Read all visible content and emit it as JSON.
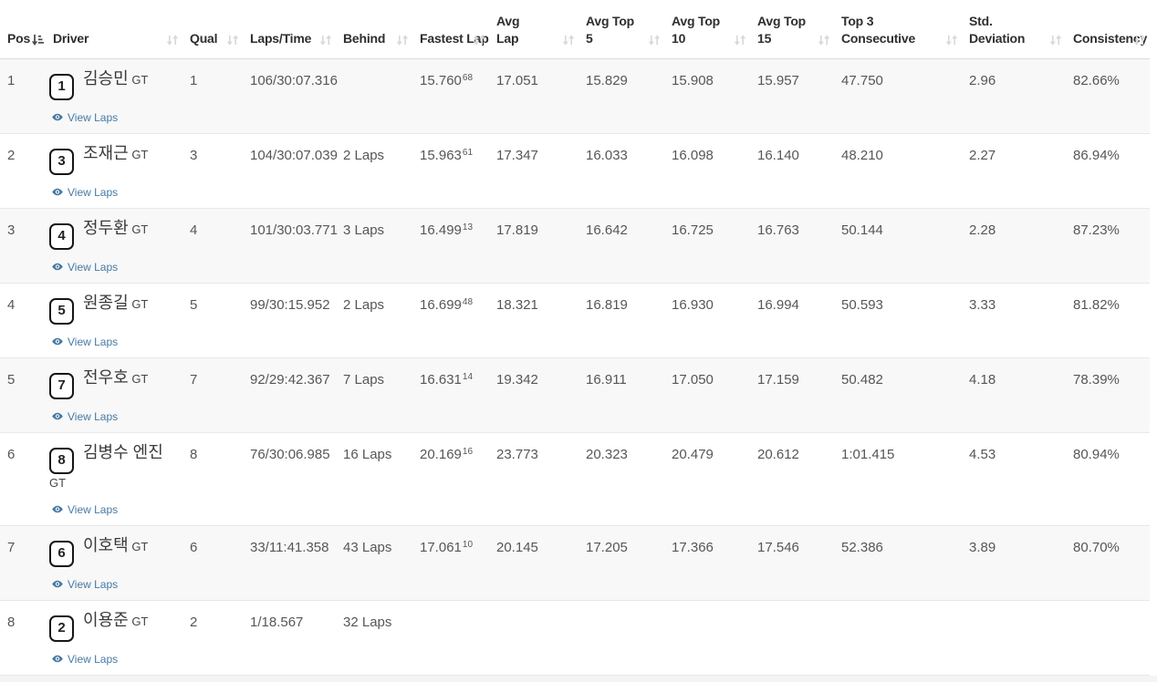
{
  "table": {
    "view_laps_label": "View Laps",
    "columns": [
      {
        "key": "pos",
        "label": "Pos",
        "lines": [
          "Pos"
        ],
        "sort": "active"
      },
      {
        "key": "driver",
        "label": "Driver",
        "lines": [
          "Driver"
        ],
        "sort": "both"
      },
      {
        "key": "qual",
        "label": "Qual",
        "lines": [
          "Qual"
        ],
        "sort": "both"
      },
      {
        "key": "laps_time",
        "label": "Laps/Time",
        "lines": [
          "Laps/Time"
        ],
        "sort": "both"
      },
      {
        "key": "behind",
        "label": "Behind",
        "lines": [
          "Behind"
        ],
        "sort": "both"
      },
      {
        "key": "fastest_lap",
        "label": "Fastest Lap",
        "lines": [
          "Fastest Lap"
        ],
        "sort": "both"
      },
      {
        "key": "avg_lap",
        "label": "Avg Lap",
        "lines": [
          "Avg",
          "Lap"
        ],
        "sort": "both"
      },
      {
        "key": "avg_top5",
        "label": "Avg Top 5",
        "lines": [
          "Avg Top",
          "5"
        ],
        "sort": "both"
      },
      {
        "key": "avg_top10",
        "label": "Avg Top 10",
        "lines": [
          "Avg Top",
          "10"
        ],
        "sort": "both"
      },
      {
        "key": "avg_top15",
        "label": "Avg Top 15",
        "lines": [
          "Avg Top",
          "15"
        ],
        "sort": "both"
      },
      {
        "key": "top3",
        "label": "Top 3 Consecutive",
        "lines": [
          "Top 3",
          "Consecutive"
        ],
        "sort": "both"
      },
      {
        "key": "std_dev",
        "label": "Std. Deviation",
        "lines": [
          "Std.",
          "Deviation"
        ],
        "sort": "both"
      },
      {
        "key": "consistency",
        "label": "Consistency",
        "lines": [
          "Consistency"
        ],
        "sort": "both"
      }
    ],
    "rows": [
      {
        "pos": "1",
        "car_number": "1",
        "driver_name": "김승민",
        "driver_suffix": "GT",
        "qual": "1",
        "laps_time": "106/30:07.316",
        "behind": "",
        "fastest_lap": "15.760",
        "fastest_lap_num": "68",
        "avg_lap": "17.051",
        "avg_top5": "15.829",
        "avg_top10": "15.908",
        "avg_top15": "15.957",
        "top3": "47.750",
        "std_dev": "2.96",
        "consistency": "82.66%"
      },
      {
        "pos": "2",
        "car_number": "3",
        "driver_name": "조재근",
        "driver_suffix": "GT",
        "qual": "3",
        "laps_time": "104/30:07.039",
        "behind": "2 Laps",
        "fastest_lap": "15.963",
        "fastest_lap_num": "61",
        "avg_lap": "17.347",
        "avg_top5": "16.033",
        "avg_top10": "16.098",
        "avg_top15": "16.140",
        "top3": "48.210",
        "std_dev": "2.27",
        "consistency": "86.94%"
      },
      {
        "pos": "3",
        "car_number": "4",
        "driver_name": "정두환",
        "driver_suffix": "GT",
        "qual": "4",
        "laps_time": "101/30:03.771",
        "behind": "3 Laps",
        "fastest_lap": "16.499",
        "fastest_lap_num": "13",
        "avg_lap": "17.819",
        "avg_top5": "16.642",
        "avg_top10": "16.725",
        "avg_top15": "16.763",
        "top3": "50.144",
        "std_dev": "2.28",
        "consistency": "87.23%"
      },
      {
        "pos": "4",
        "car_number": "5",
        "driver_name": "원종길",
        "driver_suffix": "GT",
        "qual": "5",
        "laps_time": "99/30:15.952",
        "behind": "2 Laps",
        "fastest_lap": "16.699",
        "fastest_lap_num": "48",
        "avg_lap": "18.321",
        "avg_top5": "16.819",
        "avg_top10": "16.930",
        "avg_top15": "16.994",
        "top3": "50.593",
        "std_dev": "3.33",
        "consistency": "81.82%"
      },
      {
        "pos": "5",
        "car_number": "7",
        "driver_name": "전우호",
        "driver_suffix": "GT",
        "qual": "7",
        "laps_time": "92/29:42.367",
        "behind": "7 Laps",
        "fastest_lap": "16.631",
        "fastest_lap_num": "14",
        "avg_lap": "19.342",
        "avg_top5": "16.911",
        "avg_top10": "17.050",
        "avg_top15": "17.159",
        "top3": "50.482",
        "std_dev": "4.18",
        "consistency": "78.39%"
      },
      {
        "pos": "6",
        "car_number": "8",
        "driver_name": "김병수 엔진",
        "driver_suffix": "GT",
        "qual": "8",
        "laps_time": "76/30:06.985",
        "behind": "16 Laps",
        "fastest_lap": "20.169",
        "fastest_lap_num": "16",
        "avg_lap": "23.773",
        "avg_top5": "20.323",
        "avg_top10": "20.479",
        "avg_top15": "20.612",
        "top3": "1:01.415",
        "std_dev": "4.53",
        "consistency": "80.94%"
      },
      {
        "pos": "7",
        "car_number": "6",
        "driver_name": "이호택",
        "driver_suffix": "GT",
        "qual": "6",
        "laps_time": "33/11:41.358",
        "behind": "43 Laps",
        "fastest_lap": "17.061",
        "fastest_lap_num": "10",
        "avg_lap": "20.145",
        "avg_top5": "17.205",
        "avg_top10": "17.366",
        "avg_top15": "17.546",
        "top3": "52.386",
        "std_dev": "3.89",
        "consistency": "80.70%"
      },
      {
        "pos": "8",
        "car_number": "2",
        "driver_name": "이용준",
        "driver_suffix": "GT",
        "qual": "2",
        "laps_time": "1/18.567",
        "behind": "32 Laps",
        "fastest_lap": "",
        "fastest_lap_num": "",
        "avg_lap": "",
        "avg_top5": "",
        "avg_top10": "",
        "avg_top15": "",
        "top3": "",
        "std_dev": "",
        "consistency": ""
      }
    ]
  },
  "colors": {
    "link": "#4679a4",
    "stripe": "#f8f8f8",
    "sort_inactive": "#d9d9d9",
    "sort_active": "#4a4a4a",
    "header_text": "#2e2e30"
  }
}
